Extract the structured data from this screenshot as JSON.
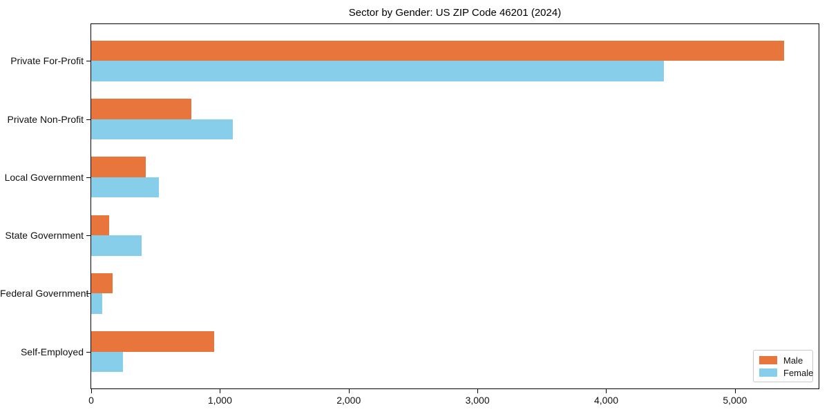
{
  "title": "Sector by Gender: US ZIP Code 46201 (2024)",
  "chart_data": {
    "type": "bar",
    "orientation": "horizontal",
    "title": "Sector by Gender: US ZIP Code 46201 (2024)",
    "xlabel": "",
    "ylabel": "",
    "categories": [
      "Private For-Profit",
      "Private Non-Profit",
      "Local Government",
      "State Government",
      "Federal Government",
      "Self-Employed"
    ],
    "series": [
      {
        "name": "Male",
        "color": "#E8763C",
        "values": [
          5380,
          780,
          425,
          140,
          165,
          955
        ]
      },
      {
        "name": "Female",
        "color": "#87CEEB",
        "values": [
          4450,
          1100,
          525,
          390,
          85,
          245
        ]
      }
    ],
    "xlim": [
      0,
      5650
    ],
    "x_ticks": [
      0,
      1000,
      2000,
      3000,
      4000,
      5000
    ],
    "x_tick_labels": [
      "0",
      "1,000",
      "2,000",
      "3,000",
      "4,000",
      "5,000"
    ],
    "grid": false,
    "legend_position": "lower right"
  },
  "legend": {
    "items": [
      {
        "label": "Male",
        "color": "#E8763C"
      },
      {
        "label": "Female",
        "color": "#87CEEB"
      }
    ]
  }
}
